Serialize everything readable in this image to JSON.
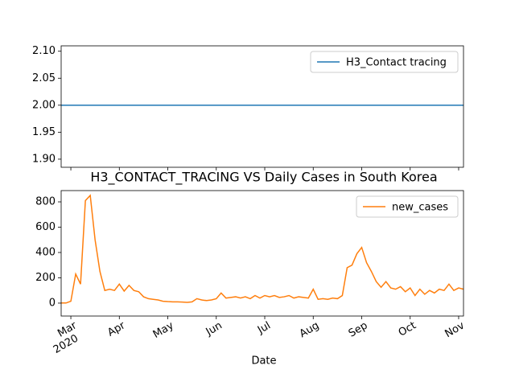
{
  "chart_data": [
    {
      "type": "line",
      "series": [
        {
          "name": "H3_Contact tracing",
          "color": "#1f77b4",
          "values": [
            2,
            2,
            2,
            2,
            2,
            2,
            2,
            2,
            2,
            2,
            2,
            2,
            2,
            2,
            2,
            2,
            2,
            2,
            2,
            2,
            2,
            2,
            2,
            2,
            2,
            2,
            2,
            2,
            2,
            2,
            2,
            2,
            2,
            2,
            2,
            2,
            2,
            2,
            2,
            2,
            2,
            2,
            2,
            2,
            2,
            2,
            2,
            2,
            2,
            2,
            2,
            2,
            2,
            2,
            2,
            2,
            2,
            2,
            2,
            2,
            2,
            2,
            2,
            2,
            2,
            2,
            2,
            2,
            2,
            2,
            2,
            2,
            2,
            2,
            2,
            2,
            2,
            2,
            2,
            2,
            2,
            2,
            2,
            2
          ]
        }
      ],
      "ylim": [
        1.885,
        2.11
      ],
      "yticks": [
        {
          "value": 1.9,
          "label": "1.90"
        },
        1.95,
        {
          "value": 2.0,
          "label": "2.00"
        },
        2.05,
        {
          "value": 2.1,
          "label": "2.10"
        }
      ],
      "legend": "upper right"
    },
    {
      "type": "line",
      "title": "H3_CONTACT_TRACING VS Daily Cases in South Korea",
      "x_label": "Date",
      "x_sublabel": "2020",
      "categories": [
        null,
        null,
        "Mar",
        null,
        null,
        null,
        null,
        null,
        null,
        null,
        null,
        null,
        "Apr",
        null,
        null,
        null,
        null,
        null,
        null,
        null,
        null,
        null,
        "May",
        null,
        null,
        null,
        null,
        null,
        null,
        null,
        null,
        null,
        "Jun",
        null,
        null,
        null,
        null,
        null,
        null,
        null,
        null,
        null,
        "Jul",
        null,
        null,
        null,
        null,
        null,
        null,
        null,
        null,
        null,
        "Aug",
        null,
        null,
        null,
        null,
        null,
        null,
        null,
        null,
        null,
        "Sep",
        null,
        null,
        null,
        null,
        null,
        null,
        null,
        null,
        null,
        "Oct",
        null,
        null,
        null,
        null,
        null,
        null,
        null,
        null,
        null,
        "Nov",
        null
      ],
      "series": [
        {
          "name": "new_cases",
          "color": "#ff7f0e",
          "values": [
            1,
            1,
            15,
            230,
            150,
            810,
            851,
            500,
            250,
            100,
            110,
            100,
            150,
            95,
            140,
            100,
            90,
            50,
            35,
            30,
            25,
            15,
            12,
            10,
            10,
            8,
            6,
            10,
            35,
            25,
            20,
            25,
            35,
            80,
            40,
            45,
            50,
            40,
            50,
            35,
            60,
            40,
            60,
            50,
            60,
            45,
            50,
            60,
            40,
            50,
            45,
            40,
            110,
            30,
            35,
            30,
            40,
            35,
            60,
            280,
            300,
            390,
            440,
            320,
            250,
            170,
            125,
            170,
            120,
            110,
            130,
            90,
            120,
            60,
            110,
            70,
            100,
            80,
            110,
            100,
            150,
            100,
            120,
            110
          ]
        }
      ],
      "ylim": [
        -102,
        889
      ],
      "yticks": [
        0,
        200,
        400,
        600,
        800
      ],
      "legend": "upper right"
    }
  ]
}
